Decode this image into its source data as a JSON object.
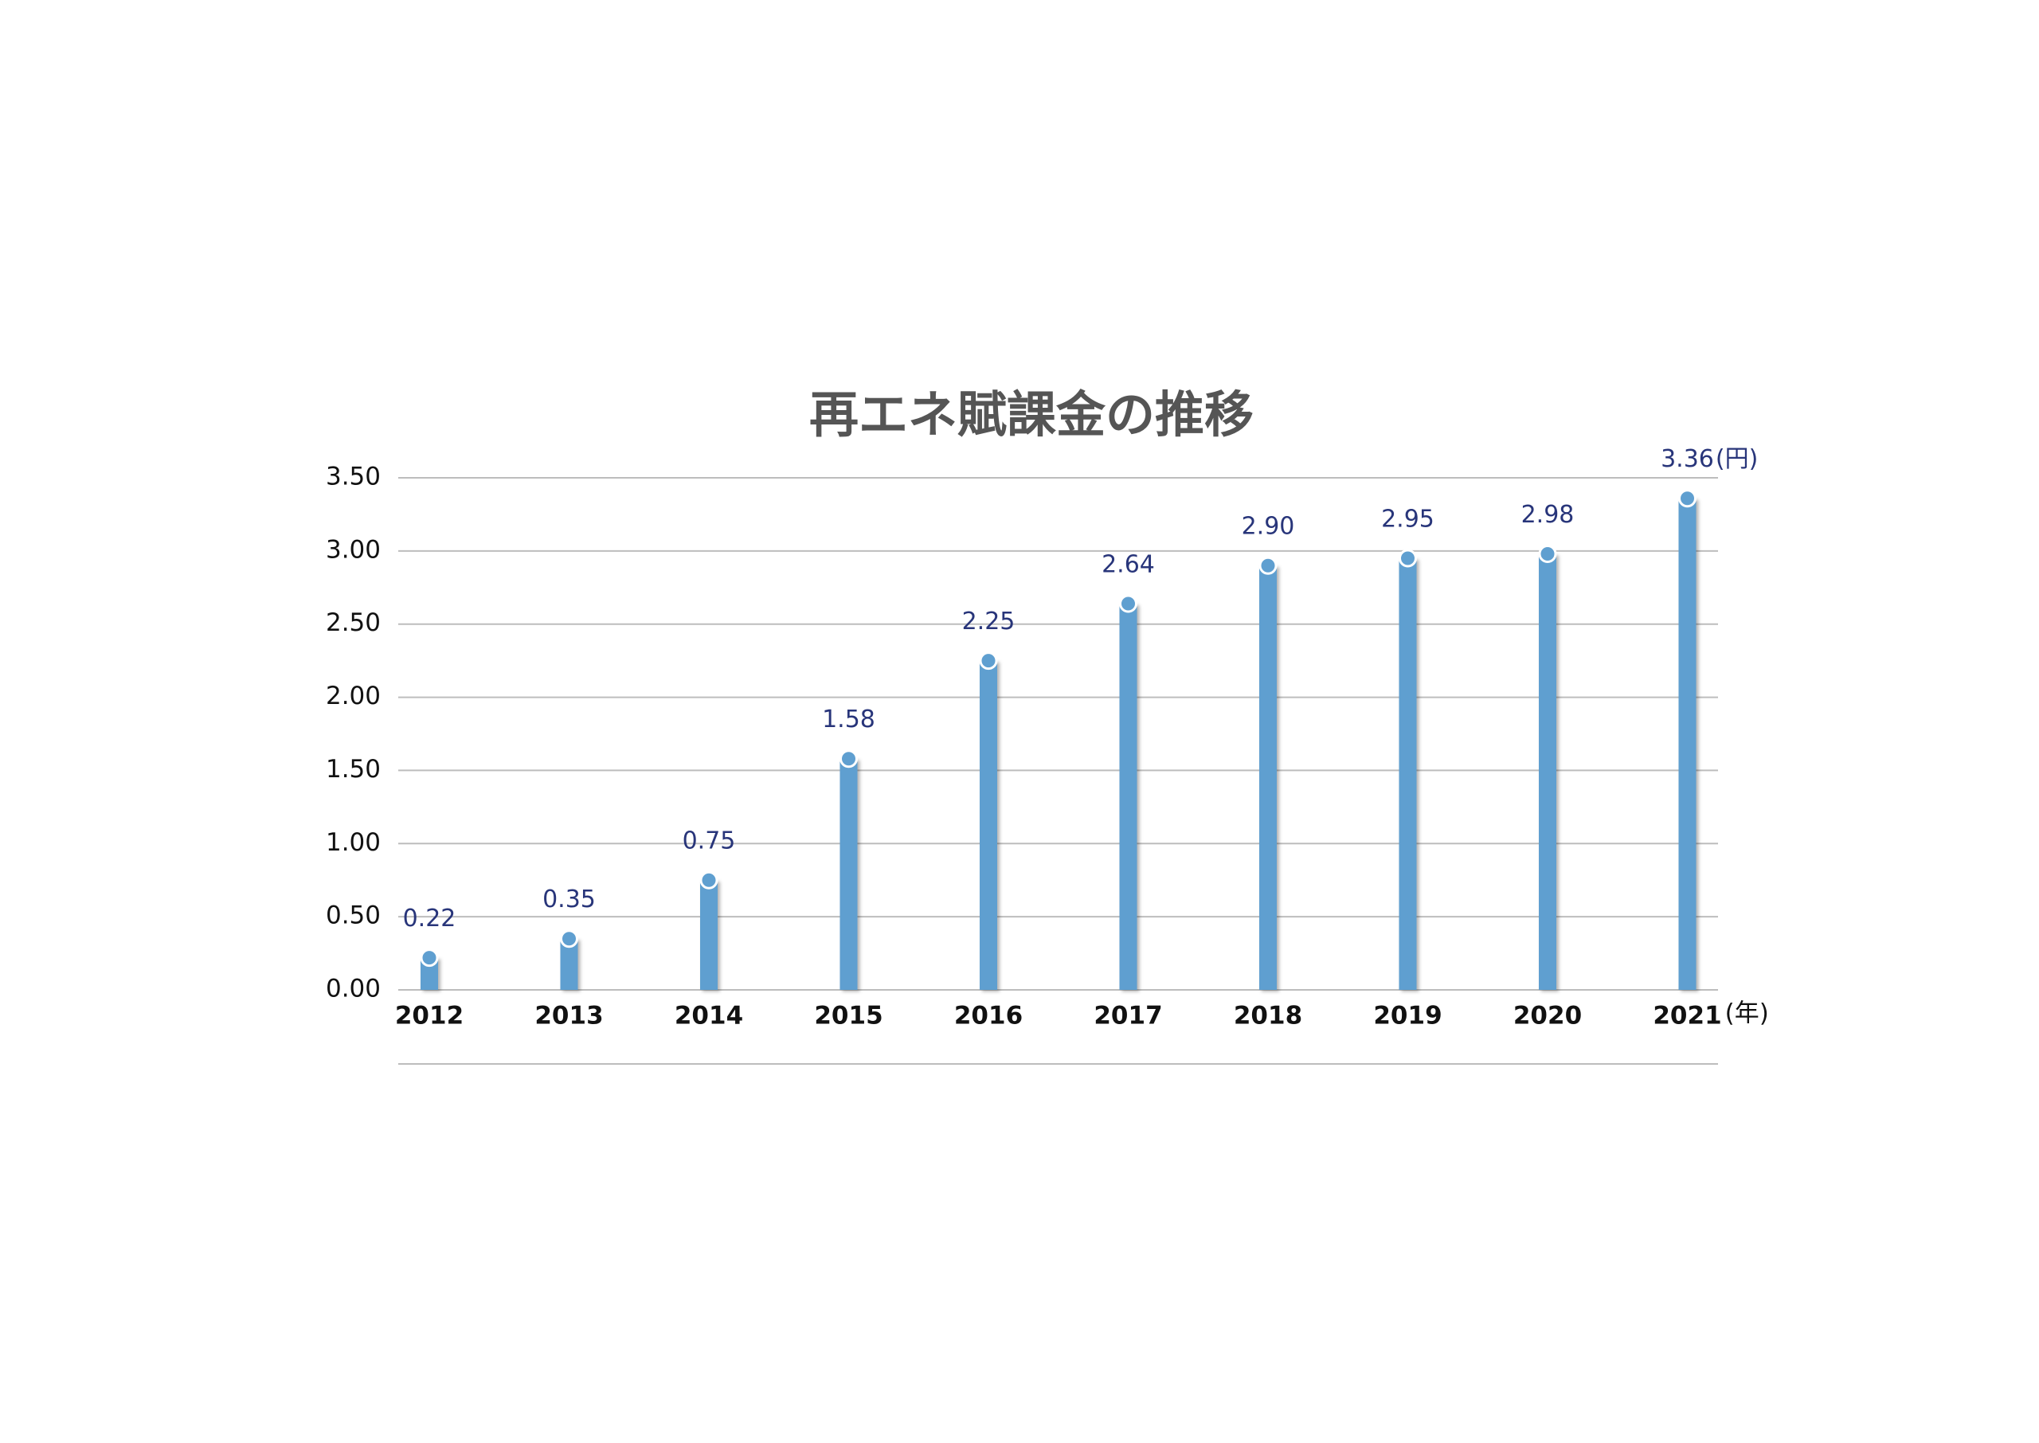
{
  "chart_data": {
    "type": "bar",
    "title": "再エネ賦課金の推移",
    "categories": [
      "2012",
      "2013",
      "2014",
      "2015",
      "2016",
      "2017",
      "2018",
      "2019",
      "2020",
      "2021"
    ],
    "values": [
      0.22,
      0.35,
      0.75,
      1.58,
      2.25,
      2.64,
      2.9,
      2.95,
      2.98,
      3.36
    ],
    "value_labels": [
      "0.22",
      "0.35",
      "0.75",
      "1.58",
      "2.25",
      "2.64",
      "2.90",
      "2.95",
      "2.98",
      "3.36"
    ],
    "y_unit": "(円)",
    "x_unit": "(年)",
    "color": "#5f9fd0",
    "ylim": [
      0,
      3.5
    ],
    "yticks": [
      {
        "value": 0,
        "label": "0.00"
      },
      {
        "value": 0.5,
        "label": "0.50"
      },
      {
        "value": 1,
        "label": "1.00"
      },
      {
        "value": 1.5,
        "label": "1.50"
      },
      {
        "value": 2,
        "label": "2.00"
      },
      {
        "value": 2.5,
        "label": "2.50"
      },
      {
        "value": 3,
        "label": "3.00"
      },
      {
        "value": 3.5,
        "label": "3.50"
      }
    ],
    "grid": true
  }
}
